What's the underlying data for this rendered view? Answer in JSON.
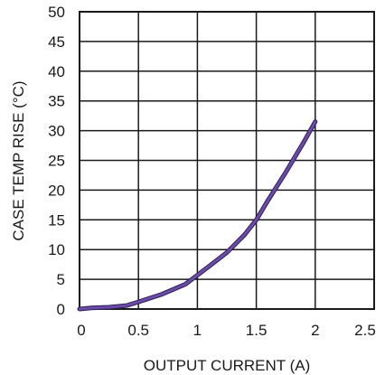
{
  "chart_data": {
    "type": "line",
    "xlabel": "OUTPUT CURRENT (A)",
    "ylabel": "CASE TEMP RISE (°C)",
    "xlim": [
      0,
      2.5
    ],
    "ylim": [
      0,
      50
    ],
    "x_ticks": [
      "0",
      "0.5",
      "1",
      "1.5",
      "2",
      "2.5"
    ],
    "y_ticks": [
      "0",
      "5",
      "10",
      "15",
      "20",
      "25",
      "30",
      "35",
      "40",
      "45",
      "50"
    ],
    "grid": true,
    "series": [
      {
        "color": "#6b4aa8",
        "x": [
          0,
          0.1,
          0.25,
          0.4,
          0.5,
          0.7,
          0.9,
          1.0,
          1.1,
          1.25,
          1.4,
          1.5,
          1.6,
          1.75,
          1.9,
          2.0
        ],
        "y": [
          0,
          0.2,
          0.3,
          0.6,
          1.2,
          2.5,
          4.2,
          5.7,
          7.2,
          9.5,
          12.5,
          15.0,
          18.3,
          23.0,
          28.0,
          31.5
        ]
      }
    ]
  }
}
